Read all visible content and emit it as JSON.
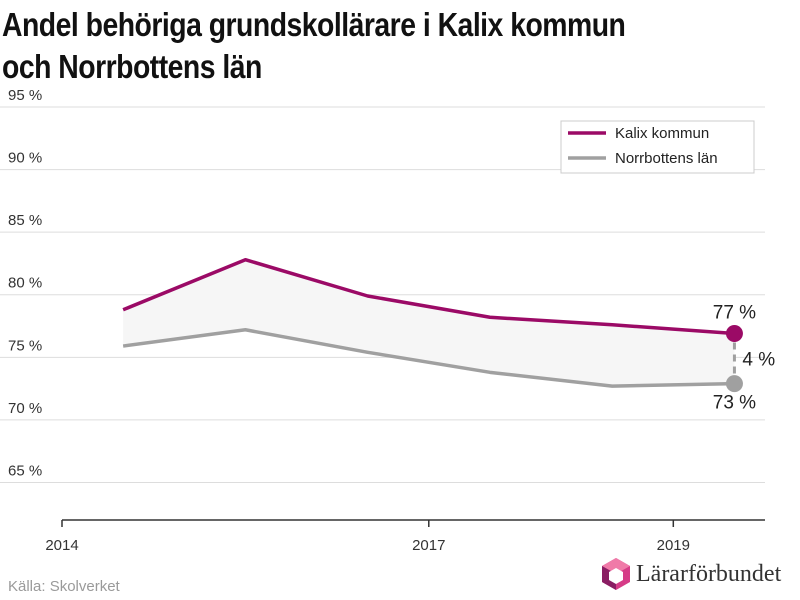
{
  "chart_data": {
    "type": "line",
    "title": "Andel behöriga grundskollärare i Kalix kommun och Norrbottens län",
    "x": [
      2014.5,
      2015.5,
      2016.5,
      2017.5,
      2018.5,
      2019.5
    ],
    "xlim": [
      2014,
      2019.75
    ],
    "x_ticks": [
      2014,
      2017,
      2019
    ],
    "x_tick_labels": [
      "2014",
      "2017",
      "2019"
    ],
    "ylim": [
      62,
      97
    ],
    "y_ticks": [
      65,
      70,
      75,
      80,
      85,
      90,
      95
    ],
    "y_tick_labels": [
      "65 %",
      "70 %",
      "75 %",
      "80 %",
      "85 %",
      "90 %",
      "95 %"
    ],
    "grid": true,
    "legend_position": "top-right",
    "series": [
      {
        "name": "Kalix kommun",
        "color": "#9b0a66",
        "values": [
          78.8,
          82.8,
          79.9,
          78.2,
          77.6,
          76.9
        ]
      },
      {
        "name": "Norrbottens län",
        "color": "#a0a0a0",
        "values": [
          75.9,
          77.2,
          75.4,
          73.8,
          72.7,
          72.9
        ]
      }
    ],
    "annotations": {
      "kalix_end_label": "77 %",
      "norrbotten_end_label": "73 %",
      "gap_label": "4 %"
    }
  },
  "source": "Källa: Skolverket",
  "brand": {
    "name": "Lärarförbundet",
    "icon": "hexagon-logo-icon"
  },
  "colors": {
    "gap_fill": "#f6f6f6",
    "grid": "#dddddd",
    "axis": "#333333"
  }
}
